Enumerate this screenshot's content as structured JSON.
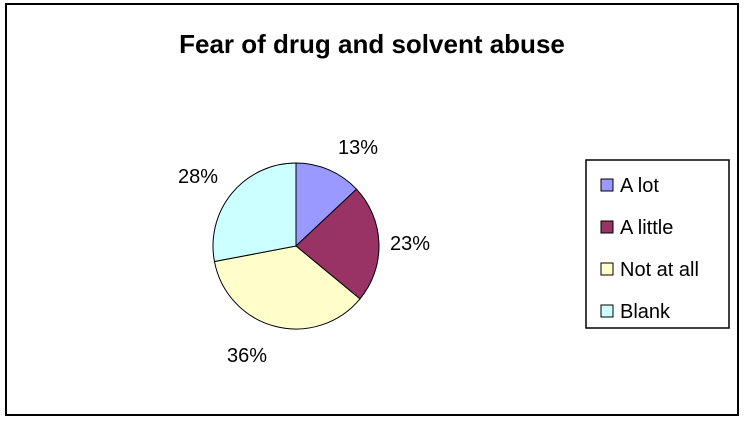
{
  "chart_data": {
    "type": "pie",
    "title": "Fear of drug and solvent abuse",
    "slices": [
      {
        "label": "A lot",
        "value": 13,
        "display": "13%",
        "color": "#9999FF"
      },
      {
        "label": "A little",
        "value": 23,
        "display": "23%",
        "color": "#993366"
      },
      {
        "label": "Not at all",
        "value": 36,
        "display": "36%",
        "color": "#FFFFCC"
      },
      {
        "label": "Blank",
        "value": 28,
        "display": "28%",
        "color": "#CCFFFF"
      }
    ],
    "start": "12 o'clock",
    "direction": "clockwise",
    "legend": {
      "position": "right",
      "border": true
    }
  }
}
